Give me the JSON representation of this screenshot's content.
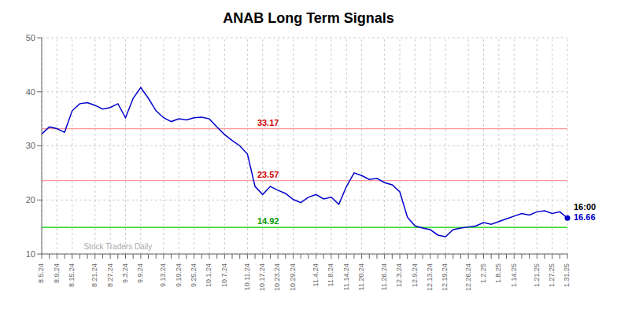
{
  "chart_data": {
    "type": "line",
    "title": "ANAB Long Term Signals",
    "color": "#0000cc",
    "grid": true,
    "categories": [
      "8.5.24",
      null,
      "8.9.24",
      null,
      "8.15.24",
      null,
      null,
      "8.21.24",
      null,
      "8.27.24",
      null,
      "9.3.24",
      null,
      "9.9.24",
      null,
      null,
      "9.13.24",
      null,
      "9.19.24",
      null,
      "9.25.24",
      null,
      "10.1.24",
      null,
      "10.7.24",
      null,
      null,
      "10.11.24",
      null,
      "10.17.24",
      null,
      "10.23.24",
      null,
      "10.29.24",
      null,
      null,
      "11.4.24",
      null,
      "11.8.24",
      null,
      "11.14.24",
      null,
      "11.20.24",
      null,
      null,
      "11.26.24",
      null,
      "12.3.24",
      null,
      "12.9.24",
      null,
      "12.13.24",
      null,
      "12.19.24",
      null,
      null,
      "12.26.24",
      null,
      "1.2.25",
      null,
      "1.8.25",
      null,
      "1.14.25",
      null,
      null,
      "1.21.25",
      null,
      "1.27.25",
      null,
      "1.31.25"
    ],
    "values": [
      32.2,
      33.5,
      33.2,
      32.5,
      36.5,
      37.8,
      38.0,
      37.5,
      36.8,
      37.1,
      37.8,
      35.2,
      38.8,
      40.8,
      38.8,
      36.5,
      35.2,
      34.5,
      35.0,
      34.8,
      35.2,
      35.3,
      35.0,
      33.5,
      32.1,
      31.0,
      30.0,
      28.5,
      22.5,
      21.0,
      22.5,
      21.8,
      21.2,
      20.1,
      19.5,
      20.5,
      21.0,
      20.2,
      20.5,
      19.2,
      22.5,
      25.0,
      24.5,
      23.8,
      24.0,
      23.2,
      22.8,
      21.5,
      16.8,
      15.2,
      14.8,
      14.5,
      13.5,
      13.2,
      14.5,
      14.8,
      15.0,
      15.2,
      15.8,
      15.5,
      16.0,
      16.5,
      17.0,
      17.5,
      17.2,
      17.8,
      18.0,
      17.5,
      17.8,
      16.66
    ],
    "ylim": [
      10,
      50
    ],
    "yticks": [
      10,
      20,
      30,
      40,
      50
    ],
    "hlines": [
      {
        "value": 33.17,
        "color": "#ff9999"
      },
      {
        "value": 23.57,
        "color": "#ff9999"
      },
      {
        "value": 14.92,
        "color": "#00cc00"
      }
    ],
    "annotations": [
      {
        "text": "33.17",
        "y": 33.17,
        "color": "#cc0000"
      },
      {
        "text": "23.57",
        "y": 23.57,
        "color": "#cc0000"
      },
      {
        "text": "14.92",
        "y": 14.92,
        "color": "#009900"
      },
      {
        "text": "16:00",
        "x": "1.31.25",
        "color": "#000000"
      },
      {
        "text": "16.66",
        "x": "1.31.25",
        "y": 16.66,
        "color": "#0000cc"
      }
    ],
    "watermark": {
      "text": "Stock Traders Daily",
      "y": 11.2,
      "color": "#aaaaaa"
    }
  }
}
